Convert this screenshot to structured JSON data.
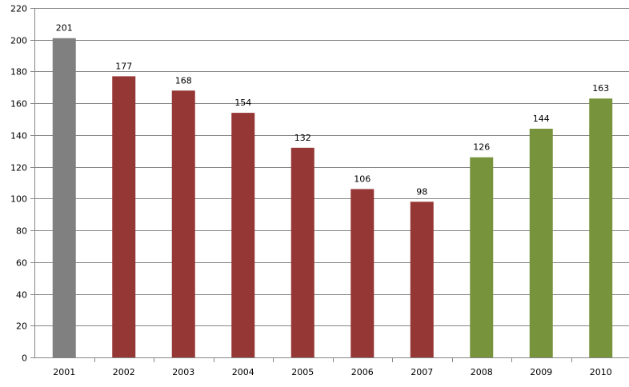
{
  "chart_data": {
    "type": "bar",
    "categories": [
      "2001",
      "2002",
      "2003",
      "2004",
      "2005",
      "2006",
      "2007",
      "2008",
      "2009",
      "2010"
    ],
    "values": [
      201,
      177,
      168,
      154,
      132,
      106,
      98,
      126,
      144,
      163
    ],
    "bar_colors": [
      "#808080",
      "#953735",
      "#953735",
      "#953735",
      "#953735",
      "#953735",
      "#953735",
      "#77933C",
      "#77933C",
      "#77933C"
    ],
    "title": "",
    "xlabel": "",
    "ylabel": "",
    "ylim": [
      0,
      220
    ],
    "y_ticks": [
      0,
      20,
      40,
      60,
      80,
      100,
      120,
      140,
      160,
      180,
      200,
      220
    ],
    "grid": true,
    "legend": "none",
    "data_labels": true
  }
}
